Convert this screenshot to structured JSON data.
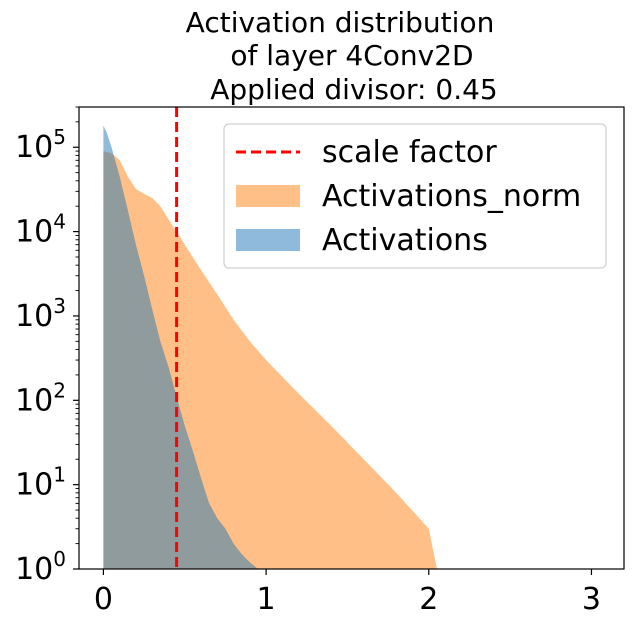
{
  "chart_data": {
    "type": "histogram",
    "title_lines": [
      "Activation distribution",
      "of layer 4Conv2D",
      "Applied divisor: 0.45"
    ],
    "xlabel": "",
    "ylabel": "",
    "xlim": [
      -0.15,
      3.2
    ],
    "ylim": [
      1,
      300000
    ],
    "y_scale": "log",
    "x_ticks": [
      {
        "value": 0,
        "label": "0"
      },
      {
        "value": 1,
        "label": "1"
      },
      {
        "value": 2,
        "label": "2"
      },
      {
        "value": 3,
        "label": "3"
      }
    ],
    "y_ticks": [
      {
        "value": 1,
        "base": "10",
        "exp": "0"
      },
      {
        "value": 10,
        "base": "10",
        "exp": "1"
      },
      {
        "value": 100,
        "base": "10",
        "exp": "2"
      },
      {
        "value": 1000,
        "base": "10",
        "exp": "3"
      },
      {
        "value": 10000,
        "base": "10",
        "exp": "4"
      },
      {
        "value": 100000,
        "base": "10",
        "exp": "5"
      }
    ],
    "scale_factor_x": 0.45,
    "legend_position": "upper right",
    "legend": [
      {
        "label": "scale factor",
        "kind": "dashed-line",
        "color": "#ff0000"
      },
      {
        "label": "Activations_norm",
        "kind": "patch",
        "color": "#ffbf86"
      },
      {
        "label": "Activations",
        "kind": "patch",
        "color": "#8fbadc"
      }
    ],
    "series": [
      {
        "name": "Activations_norm",
        "color": "#ff7f0e",
        "alpha": 0.5,
        "x": [
          0.0,
          0.05,
          0.1,
          0.15,
          0.2,
          0.25,
          0.3,
          0.35,
          0.4,
          0.45,
          0.5,
          0.6,
          0.7,
          0.8,
          0.9,
          1.0,
          1.2,
          1.4,
          1.6,
          1.8,
          2.0,
          2.05,
          2.2,
          2.4,
          2.6,
          2.7,
          3.05
        ],
        "y": [
          90000,
          85000,
          70000,
          45000,
          32000,
          28000,
          25000,
          20000,
          14000,
          10000,
          7000,
          3500,
          1800,
          900,
          500,
          300,
          120,
          50,
          20,
          8,
          3,
          1,
          1,
          1,
          1,
          1,
          1
        ]
      },
      {
        "name": "Activations",
        "color": "#1f77b4",
        "alpha": 0.5,
        "x": [
          0.0,
          0.02,
          0.05,
          0.1,
          0.15,
          0.2,
          0.25,
          0.3,
          0.35,
          0.4,
          0.45,
          0.5,
          0.55,
          0.6,
          0.65,
          0.7,
          0.75,
          0.8,
          0.85,
          0.9,
          0.95,
          1.0,
          1.05,
          1.1,
          1.2
        ],
        "y": [
          180000,
          150000,
          100000,
          45000,
          18000,
          7000,
          3000,
          1200,
          500,
          250,
          110,
          50,
          25,
          12,
          6,
          4,
          3,
          2,
          1.5,
          1.2,
          1,
          1,
          1,
          1,
          1
        ]
      }
    ]
  }
}
